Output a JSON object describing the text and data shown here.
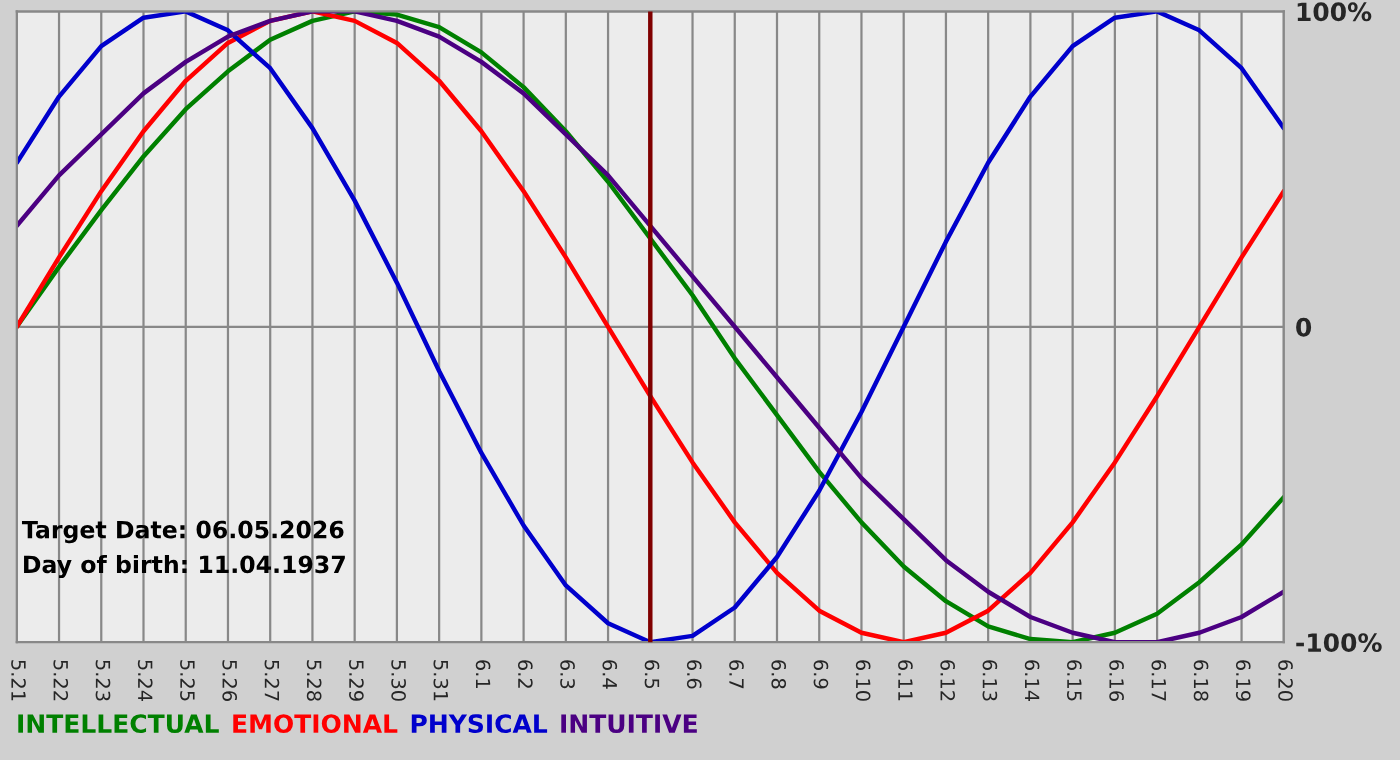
{
  "chart_data": {
    "type": "line",
    "categories": [
      "5.21",
      "5.22",
      "5.23",
      "5.24",
      "5.25",
      "5.26",
      "5.27",
      "5.28",
      "5.29",
      "5.30",
      "5.31",
      "6.1",
      "6.2",
      "6.3",
      "6.4",
      "6.5",
      "6.6",
      "6.7",
      "6.8",
      "6.9",
      "6.10",
      "6.11",
      "6.12",
      "6.13",
      "6.14",
      "6.15",
      "6.16",
      "6.17",
      "6.18",
      "6.19",
      "6.20"
    ],
    "series": [
      {
        "name": "INTELLECTUAL",
        "color": "#008000",
        "values": [
          0,
          19,
          37,
          54,
          69,
          81,
          91,
          97,
          100,
          99,
          95,
          87,
          76,
          62,
          46,
          28,
          10,
          -10,
          -28,
          -46,
          -62,
          -76,
          -87,
          -95,
          -99,
          -100,
          -97,
          -91,
          -81,
          -69,
          -54
        ]
      },
      {
        "name": "EMOTIONAL",
        "color": "#ff0000",
        "values": [
          0,
          22,
          43,
          62,
          78,
          90,
          97,
          100,
          97,
          90,
          78,
          62,
          43,
          22,
          0,
          -22,
          -43,
          -62,
          -78,
          -90,
          -97,
          -100,
          -97,
          -90,
          -78,
          -62,
          -43,
          -22,
          0,
          22,
          43
        ]
      },
      {
        "name": "PHYSICAL",
        "color": "#0000cc",
        "values": [
          52,
          73,
          89,
          98,
          100,
          94,
          82,
          63,
          40,
          14,
          -14,
          -40,
          -63,
          -82,
          -94,
          -100,
          -98,
          -89,
          -73,
          -52,
          -27,
          0,
          27,
          52,
          73,
          89,
          98,
          100,
          94,
          82,
          63
        ]
      },
      {
        "name": "INTUITIVE",
        "color": "#4b0082",
        "values": [
          32,
          48,
          61,
          74,
          84,
          92,
          97,
          100,
          100,
          97,
          92,
          84,
          74,
          61,
          48,
          32,
          16,
          0,
          -16,
          -32,
          -48,
          -61,
          -74,
          -84,
          -92,
          -97,
          -100,
          -100,
          -97,
          -92,
          -84
        ]
      }
    ],
    "ylim": [
      -100,
      100
    ],
    "yticks": [
      {
        "value": 100,
        "label": "100%"
      },
      0,
      {
        "value": -100,
        "label": "-100%"
      }
    ],
    "ref_lines": [
      {
        "axis": "x",
        "value": "6.5",
        "color": "#800000"
      }
    ],
    "annotations": [
      "Target Date: 06.05.2026",
      "Day of birth: 11.04.1937"
    ],
    "grid": true,
    "legend": "bottom",
    "marker": "none",
    "line_style": "solid"
  }
}
